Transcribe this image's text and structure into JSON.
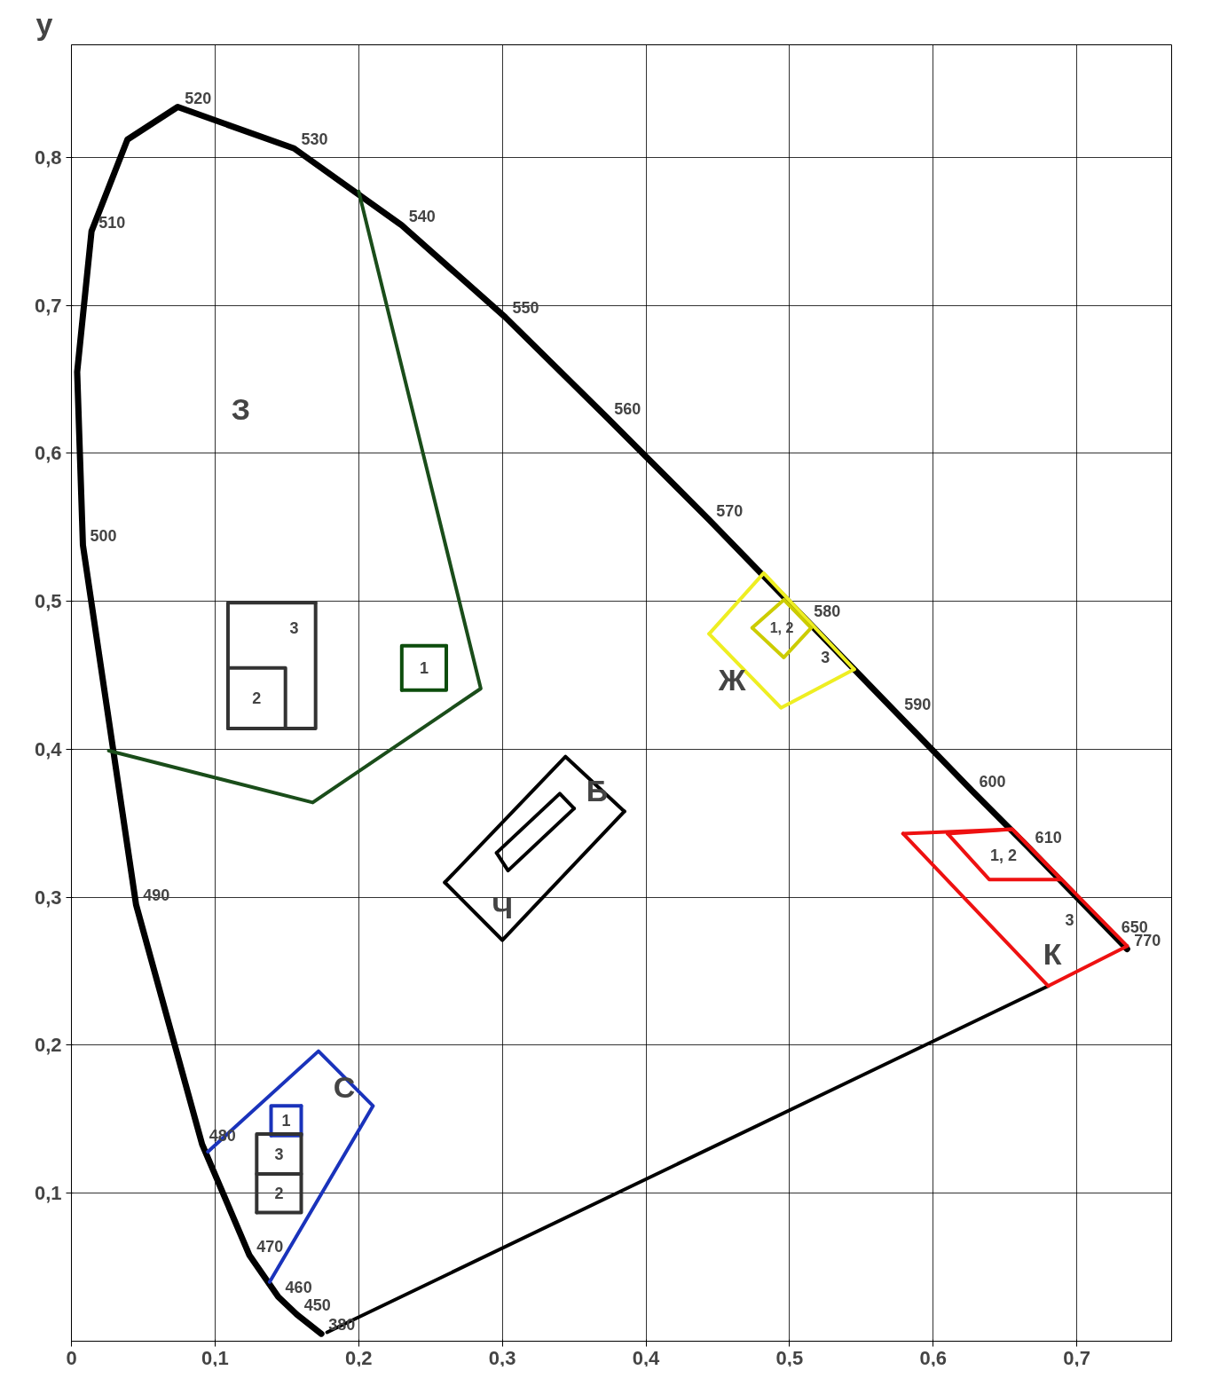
{
  "chart_data": {
    "type": "line",
    "ylabel": "y",
    "xlim": [
      0,
      0.766
    ],
    "ylim": [
      0,
      0.876
    ],
    "xticks": [
      0,
      {
        "value": 0.1,
        "label": "0,1"
      },
      {
        "value": 0.2,
        "label": "0,2"
      },
      {
        "value": 0.3,
        "label": "0,3"
      },
      {
        "value": 0.4,
        "label": "0,4"
      },
      {
        "value": 0.5,
        "label": "0,5"
      },
      {
        "value": 0.6,
        "label": "0,6"
      },
      {
        "value": 0.7,
        "label": "0,7"
      }
    ],
    "yticks": [
      {
        "value": 0.1,
        "label": "0,1"
      },
      {
        "value": 0.2,
        "label": "0,2"
      },
      {
        "value": 0.3,
        "label": "0,3"
      },
      {
        "value": 0.4,
        "label": "0,4"
      },
      {
        "value": 0.5,
        "label": "0,5"
      },
      {
        "value": 0.6,
        "label": "0,6"
      },
      {
        "value": 0.7,
        "label": "0,7"
      },
      {
        "value": 0.8,
        "label": "0,8"
      }
    ],
    "grid": true,
    "marker": "none",
    "line_style": "solid",
    "series": [
      {
        "color": "#000000",
        "x": [
          0.174,
          0.157,
          0.144,
          0.124,
          0.091,
          0.045,
          0.008,
          0.004,
          0.014,
          0.039,
          0.074,
          0.155,
          0.23,
          0.302,
          0.373,
          0.444,
          0.512,
          0.575,
          0.627,
          0.666,
          0.726,
          0.735
        ],
        "values": [
          0.005,
          0.018,
          0.03,
          0.058,
          0.133,
          0.295,
          0.538,
          0.655,
          0.75,
          0.812,
          0.834,
          0.806,
          0.754,
          0.692,
          0.624,
          0.555,
          0.487,
          0.424,
          0.372,
          0.334,
          0.274,
          0.265
        ]
      },
      {
        "color": "#000000",
        "x": [
          0.178,
          0.68
        ],
        "values": [
          0.006,
          0.24
        ]
      },
      {
        "color": "#1a4d1a",
        "x": [
          0.026,
          0.168,
          0.285,
          0.2
        ],
        "values": [
          0.399,
          0.364,
          0.441,
          0.777
        ]
      },
      {
        "color": "#1a33bb",
        "x": [
          0.095,
          0.172,
          0.21,
          0.138
        ],
        "values": [
          0.128,
          0.196,
          0.159,
          0.04
        ]
      },
      {
        "color": "#eeee22",
        "x": [
          0.444,
          0.482,
          0.545
        ],
        "values": [
          0.478,
          0.519,
          0.454
        ]
      },
      {
        "color": "#eeee22",
        "x": [
          0.545,
          0.494,
          0.444
        ],
        "values": [
          0.454,
          0.428,
          0.478
        ]
      },
      {
        "color": "#ee1111",
        "x": [
          0.579,
          0.655,
          0.735
        ],
        "values": [
          0.343,
          0.346,
          0.267
        ]
      },
      {
        "color": "#ee1111",
        "x": [
          0.735,
          0.68,
          0.579
        ],
        "values": [
          0.267,
          0.24,
          0.343
        ]
      },
      {
        "color": "#000000",
        "x": [
          0.26,
          0.344,
          0.385
        ],
        "values": [
          0.31,
          0.395,
          0.358
        ]
      },
      {
        "color": "#000000",
        "x": [
          0.385,
          0.3,
          0.26
        ],
        "values": [
          0.358,
          0.271,
          0.31
        ]
      },
      {
        "color": "#000000",
        "x": [
          0.296,
          0.34,
          0.35
        ],
        "values": [
          0.33,
          0.37,
          0.36
        ]
      },
      {
        "color": "#000000",
        "x": [
          0.35,
          0.304,
          0.296
        ],
        "values": [
          0.36,
          0.318,
          0.33
        ]
      },
      {
        "color": "#0d4d0d",
        "x": [
          0.23,
          0.261,
          0.261
        ],
        "values": [
          0.44,
          0.44,
          0.47
        ]
      },
      {
        "color": "#0d4d0d",
        "x": [
          0.261,
          0.23,
          0.23
        ],
        "values": [
          0.47,
          0.47,
          0.44
        ]
      },
      {
        "color": "#333333",
        "x": [
          0.109,
          0.17,
          0.17
        ],
        "values": [
          0.414,
          0.414,
          0.499
        ]
      },
      {
        "color": "#333333",
        "x": [
          0.17,
          0.109,
          0.109
        ],
        "values": [
          0.499,
          0.499,
          0.414
        ]
      },
      {
        "color": "#333333",
        "x": [
          0.109,
          0.149,
          0.149
        ],
        "values": [
          0.455,
          0.455,
          0.414
        ]
      },
      {
        "color": "#1a33bb",
        "x": [
          0.139,
          0.16,
          0.16
        ],
        "values": [
          0.139,
          0.139,
          0.159
        ]
      },
      {
        "color": "#1a33bb",
        "x": [
          0.16,
          0.139,
          0.139
        ],
        "values": [
          0.159,
          0.159,
          0.139
        ]
      },
      {
        "color": "#333333",
        "x": [
          0.129,
          0.16,
          0.16
        ],
        "values": [
          0.087,
          0.087,
          0.14
        ]
      },
      {
        "color": "#333333",
        "x": [
          0.16,
          0.129,
          0.129
        ],
        "values": [
          0.14,
          0.14,
          0.087
        ]
      },
      {
        "color": "#333333",
        "x": [
          0.129,
          0.16
        ],
        "values": [
          0.113,
          0.113
        ]
      },
      {
        "color": "#cccc00",
        "x": [
          0.474,
          0.496,
          0.515
        ],
        "values": [
          0.482,
          0.501,
          0.482
        ]
      },
      {
        "color": "#cccc00",
        "x": [
          0.515,
          0.496,
          0.474
        ],
        "values": [
          0.482,
          0.462,
          0.482
        ]
      },
      {
        "color": "#ee1111",
        "x": [
          0.61,
          0.655,
          0.689
        ],
        "values": [
          0.343,
          0.346,
          0.312
        ]
      },
      {
        "color": "#ee1111",
        "x": [
          0.689,
          0.639,
          0.61
        ],
        "values": [
          0.312,
          0.312,
          0.343
        ]
      }
    ],
    "annotations": [
      {
        "text": "520",
        "x": 0.074,
        "y": 0.834
      },
      {
        "text": "530",
        "x": 0.155,
        "y": 0.806
      },
      {
        "text": "540",
        "x": 0.23,
        "y": 0.754
      },
      {
        "text": "550",
        "x": 0.302,
        "y": 0.692
      },
      {
        "text": "560",
        "x": 0.373,
        "y": 0.624
      },
      {
        "text": "570",
        "x": 0.444,
        "y": 0.555
      },
      {
        "text": "580",
        "x": 0.512,
        "y": 0.487
      },
      {
        "text": "590",
        "x": 0.575,
        "y": 0.424
      },
      {
        "text": "600",
        "x": 0.627,
        "y": 0.372
      },
      {
        "text": "610",
        "x": 0.666,
        "y": 0.334
      },
      {
        "text": "650",
        "x": 0.726,
        "y": 0.274
      },
      {
        "text": "770",
        "x": 0.735,
        "y": 0.265
      },
      {
        "text": "510",
        "x": 0.014,
        "y": 0.75
      },
      {
        "text": "500",
        "x": 0.008,
        "y": 0.538
      },
      {
        "text": "490",
        "x": 0.045,
        "y": 0.295
      },
      {
        "text": "480",
        "x": 0.091,
        "y": 0.133
      },
      {
        "text": "470",
        "x": 0.124,
        "y": 0.058
      },
      {
        "text": "460",
        "x": 0.144,
        "y": 0.03
      },
      {
        "text": "450",
        "x": 0.157,
        "y": 0.018
      },
      {
        "text": "380",
        "x": 0.174,
        "y": 0.005
      },
      "З",
      "С",
      "Ж",
      "К",
      "Б",
      "Ч",
      "1",
      "3",
      "2",
      "1",
      "3",
      "2",
      "1, 2",
      "3",
      "1, 2",
      "3"
    ]
  }
}
